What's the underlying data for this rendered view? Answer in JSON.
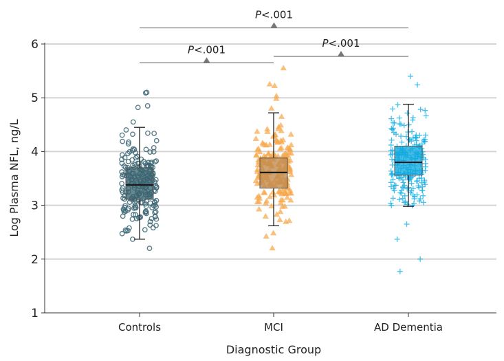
{
  "chart_data": {
    "type": "box",
    "title": "",
    "xlabel": "Diagnostic Group",
    "ylabel": "Log Plasma NFL, ng/L",
    "ylim": [
      1,
      6
    ],
    "yticks": [
      1,
      2,
      3,
      4,
      5,
      6
    ],
    "grid": "horizontal",
    "categories": [
      "Controls",
      "MCI",
      "AD Dementia"
    ],
    "series": [
      {
        "name": "Controls",
        "marker": "open-circle",
        "color": "#3d6775",
        "box_fill": "#3b6471",
        "box": {
          "whisker_low": 2.37,
          "q1": 3.11,
          "median": 3.38,
          "q3": 3.7,
          "whisker_high": 4.45
        },
        "outliers": [
          5.1,
          5.09,
          4.85,
          4.82,
          4.55,
          2.37,
          2.2
        ]
      },
      {
        "name": "MCI",
        "marker": "triangle",
        "color": "#f7a84c",
        "box_fill": "#c08a4e",
        "box": {
          "whisker_low": 2.62,
          "q1": 3.32,
          "median": 3.61,
          "q3": 3.88,
          "whisker_high": 4.72
        },
        "outliers": [
          5.55,
          5.25,
          5.22,
          5.03,
          4.98,
          4.8,
          2.48,
          2.42,
          2.2
        ]
      },
      {
        "name": "AD Dementia",
        "marker": "plus",
        "color": "#16b0e6",
        "box_fill": "#0fa8de",
        "box": {
          "whisker_low": 2.98,
          "q1": 3.56,
          "median": 3.8,
          "q3": 4.1,
          "whisker_high": 4.88
        },
        "outliers": [
          5.4,
          5.24,
          4.87,
          2.65,
          2.37,
          2.0,
          1.77
        ]
      }
    ],
    "comparisons": [
      {
        "groups": [
          "Controls",
          "MCI"
        ],
        "label_italic": "P",
        "label_rest": "<.001",
        "level": 5.65
      },
      {
        "groups": [
          "MCI",
          "AD Dementia"
        ],
        "label_italic": "P",
        "label_rest": "<.001",
        "level": 5.77
      },
      {
        "groups": [
          "Controls",
          "AD Dementia"
        ],
        "label_italic": "P",
        "label_rest": "<.001",
        "level": 6.3
      }
    ]
  }
}
